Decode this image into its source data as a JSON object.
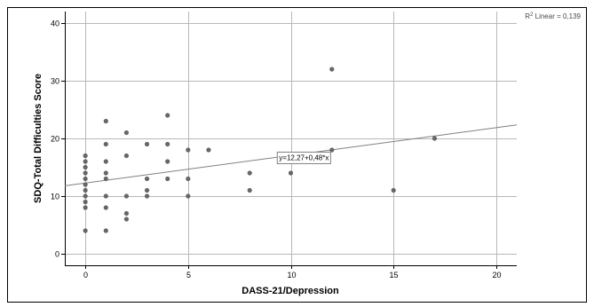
{
  "chart_data": {
    "type": "scatter",
    "xlabel": "DASS-21/Depression",
    "ylabel": "SDQ-Total Difficulties Score",
    "xlim": [
      -1,
      21
    ],
    "ylim": [
      -2,
      42
    ],
    "xticks": [
      0,
      5,
      10,
      15,
      20
    ],
    "yticks": [
      0,
      10,
      20,
      30,
      40
    ],
    "grid": true,
    "points": [
      {
        "x": 0,
        "y": 4
      },
      {
        "x": 0,
        "y": 8
      },
      {
        "x": 0,
        "y": 9
      },
      {
        "x": 0,
        "y": 10
      },
      {
        "x": 0,
        "y": 11
      },
      {
        "x": 0,
        "y": 12
      },
      {
        "x": 0,
        "y": 13
      },
      {
        "x": 0,
        "y": 14
      },
      {
        "x": 0,
        "y": 15
      },
      {
        "x": 0,
        "y": 16
      },
      {
        "x": 0,
        "y": 17
      },
      {
        "x": 1,
        "y": 4
      },
      {
        "x": 1,
        "y": 8
      },
      {
        "x": 1,
        "y": 10
      },
      {
        "x": 1,
        "y": 13
      },
      {
        "x": 1,
        "y": 14
      },
      {
        "x": 1,
        "y": 16
      },
      {
        "x": 1,
        "y": 19
      },
      {
        "x": 1,
        "y": 23
      },
      {
        "x": 2,
        "y": 6
      },
      {
        "x": 2,
        "y": 7
      },
      {
        "x": 2,
        "y": 10
      },
      {
        "x": 2,
        "y": 17
      },
      {
        "x": 2,
        "y": 21
      },
      {
        "x": 3,
        "y": 10
      },
      {
        "x": 3,
        "y": 11
      },
      {
        "x": 3,
        "y": 13
      },
      {
        "x": 3,
        "y": 19
      },
      {
        "x": 4,
        "y": 13
      },
      {
        "x": 4,
        "y": 16
      },
      {
        "x": 4,
        "y": 19
      },
      {
        "x": 4,
        "y": 24
      },
      {
        "x": 5,
        "y": 10
      },
      {
        "x": 5,
        "y": 13
      },
      {
        "x": 5,
        "y": 18
      },
      {
        "x": 6,
        "y": 18
      },
      {
        "x": 8,
        "y": 11
      },
      {
        "x": 8,
        "y": 14
      },
      {
        "x": 10,
        "y": 14
      },
      {
        "x": 12,
        "y": 18
      },
      {
        "x": 12,
        "y": 32
      },
      {
        "x": 15,
        "y": 11
      },
      {
        "x": 17,
        "y": 20
      }
    ],
    "fit_line": {
      "intercept": 12.27,
      "slope": 0.48,
      "equation_label": "y=12,27+0,48*x",
      "equation_anchor": {
        "x": 9.3,
        "y": 16.7
      },
      "r2_label_prefix": "R",
      "r2_label_sup": "2",
      "r2_label_suffix": " Linear = 0,139"
    },
    "colors": {
      "point": "#666666",
      "fit_line": "#808080",
      "grid": "#b8b8b8"
    }
  }
}
